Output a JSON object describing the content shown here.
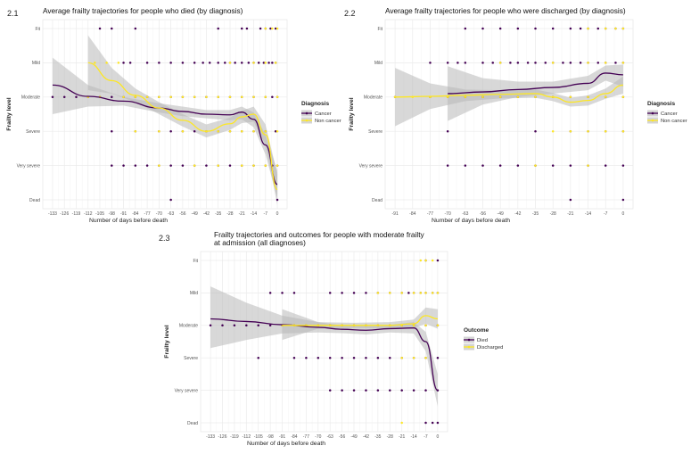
{
  "colors": {
    "purple": "#440154",
    "yellow": "#fde725",
    "band": "#b8b8b8",
    "grid": "#ebebeb"
  },
  "frailty_levels": [
    "Dead",
    "Very severe",
    "Severe",
    "Moderate",
    "Mild",
    "Fit"
  ],
  "chart_data": [
    {
      "panel": "2.1",
      "type": "scatter",
      "title": "Average frailty trajectories for people who died (by diagnosis)",
      "xlabel": "Number of days before death",
      "ylabel": "Frailty level",
      "xticks": [
        "-133",
        "-126",
        "-119",
        "-112",
        "-105",
        "-98",
        "-91",
        "-84",
        "-77",
        "-70",
        "-63",
        "-56",
        "-49",
        "-42",
        "-35",
        "-28",
        "-21",
        "-14",
        "-7",
        "0"
      ],
      "xlim": [
        -133,
        0
      ],
      "legend": {
        "title": "Diagnosis",
        "items": [
          "Cancer",
          "Non cancer"
        ],
        "position": "right"
      },
      "series": [
        {
          "name": "Cancer",
          "color": "purple",
          "points": {
            "Fit": [
              -105,
              -98,
              -84,
              -35,
              -21,
              -18,
              -10,
              -7,
              -4,
              -1
            ],
            "Mild": [
              -91,
              -87,
              -77,
              -70,
              -63,
              -56,
              -49,
              -44,
              -40,
              -35,
              -31,
              -28,
              -25,
              -21,
              -17,
              -14,
              -11,
              -8,
              -5,
              -3,
              -1
            ],
            "Moderate": [
              -133,
              -126,
              -119,
              -112,
              -105,
              -98,
              -91,
              -84,
              -77,
              -70,
              -63,
              -56,
              -49,
              -42,
              -35,
              -28,
              -21,
              -14,
              -7,
              -3,
              0
            ],
            "Severe": [
              -98,
              -84,
              -70,
              -63,
              -56,
              -49,
              -42,
              -35,
              -28,
              -21,
              -14,
              -7,
              -1
            ],
            "Very severe": [
              -98,
              -91,
              -84,
              -77,
              -70,
              -63,
              -56,
              -49,
              -42,
              -35,
              -28,
              -21,
              -14,
              -7,
              -3,
              0
            ],
            "Dead": [
              -63,
              0
            ]
          },
          "trend": [
            [
              -133,
              3.35
            ],
            [
              -112,
              3.02
            ],
            [
              -91,
              2.88
            ],
            [
              -70,
              2.68
            ],
            [
              -56,
              2.58
            ],
            [
              -42,
              2.5
            ],
            [
              -28,
              2.48
            ],
            [
              -21,
              2.56
            ],
            [
              -14,
              2.35
            ],
            [
              -7,
              1.6
            ],
            [
              0,
              0.45
            ]
          ],
          "band": [
            [
              -133,
              4.15,
              2.5
            ],
            [
              -112,
              3.35,
              2.72
            ],
            [
              -91,
              3.0,
              2.75
            ],
            [
              -70,
              2.82,
              2.55
            ],
            [
              -56,
              2.72,
              2.44
            ],
            [
              -42,
              2.62,
              2.38
            ],
            [
              -28,
              2.62,
              2.32
            ],
            [
              -21,
              2.72,
              2.35
            ],
            [
              -14,
              2.55,
              2.12
            ],
            [
              -7,
              1.9,
              1.32
            ],
            [
              0,
              0.85,
              0.05
            ]
          ]
        },
        {
          "name": "Non cancer",
          "color": "yellow",
          "points": {
            "Fit": [
              -7,
              -3,
              0
            ],
            "Mild": [
              -108,
              -101,
              -94,
              -28,
              -14,
              -7,
              -1
            ],
            "Moderate": [
              -112,
              -105,
              -91,
              -84,
              -77,
              -70,
              -63,
              -56,
              -49,
              -42,
              -35,
              -28,
              -21,
              -14,
              -7,
              0
            ],
            "Severe": [
              -84,
              -70,
              -56,
              -42,
              -35,
              -28,
              -21,
              -14,
              -7,
              0
            ],
            "Very severe": [
              -70,
              -49,
              -35,
              -21,
              -14,
              -7,
              0
            ],
            "Dead": []
          },
          "trend": [
            [
              -112,
              4.0
            ],
            [
              -98,
              3.48
            ],
            [
              -84,
              3.05
            ],
            [
              -70,
              2.68
            ],
            [
              -56,
              2.32
            ],
            [
              -42,
              2.0
            ],
            [
              -28,
              2.22
            ],
            [
              -21,
              2.42
            ],
            [
              -14,
              2.5
            ],
            [
              -7,
              1.9
            ],
            [
              0,
              0.3
            ]
          ],
          "band": [
            [
              -112,
              4.8,
              3.2
            ],
            [
              -98,
              3.85,
              3.1
            ],
            [
              -84,
              3.25,
              2.85
            ],
            [
              -70,
              2.85,
              2.5
            ],
            [
              -56,
              2.5,
              2.14
            ],
            [
              -42,
              2.2,
              1.82
            ],
            [
              -28,
              2.4,
              2.04
            ],
            [
              -21,
              2.6,
              2.24
            ],
            [
              -14,
              2.72,
              2.28
            ],
            [
              -7,
              2.2,
              1.6
            ],
            [
              0,
              0.75,
              -0.15
            ]
          ]
        }
      ]
    },
    {
      "panel": "2.2",
      "type": "scatter",
      "title": "Average frailty trajectories for people who were discharged (by diagnosis)",
      "xlabel": "Number of days before death",
      "ylabel": "Frailty level",
      "xticks": [
        "-91",
        "-84",
        "-77",
        "-70",
        "-63",
        "-56",
        "-49",
        "-42",
        "-35",
        "-28",
        "-21",
        "-14",
        "-7",
        "0"
      ],
      "xlim": [
        -91,
        0
      ],
      "legend": {
        "title": "Diagnosis",
        "items": [
          "Cancer",
          "Non cancer"
        ],
        "position": "right"
      },
      "series": [
        {
          "name": "Cancer",
          "color": "purple",
          "points": {
            "Fit": [
              -63,
              -56,
              -49,
              -42,
              -35,
              -28,
              -21,
              -17,
              -14,
              -10,
              -7,
              -3,
              0
            ],
            "Mild": [
              -77,
              -70,
              -66,
              -63,
              -56,
              -52,
              -49,
              -45,
              -42,
              -38,
              -35,
              -31,
              -28,
              -24,
              -21,
              -17,
              -14,
              -10,
              -7,
              -3,
              0
            ],
            "Moderate": [
              -91,
              -77,
              -70,
              -63,
              -56,
              -49,
              -42,
              -35,
              -28,
              -21,
              -14,
              -7,
              0
            ],
            "Severe": [
              -70,
              -35,
              -21,
              -14,
              -7,
              0
            ],
            "Very severe": [
              -70,
              -63,
              -56,
              -49,
              -42,
              -35,
              -28,
              -21,
              -14,
              -7,
              0
            ],
            "Dead": [
              -21,
              0
            ]
          },
          "trend": [
            [
              -70,
              3.1
            ],
            [
              -56,
              3.15
            ],
            [
              -42,
              3.22
            ],
            [
              -28,
              3.28
            ],
            [
              -14,
              3.4
            ],
            [
              -7,
              3.7
            ],
            [
              0,
              3.65
            ]
          ],
          "band": [
            [
              -70,
              3.9,
              2.3
            ],
            [
              -56,
              3.55,
              2.78
            ],
            [
              -42,
              3.45,
              3.0
            ],
            [
              -28,
              3.45,
              3.1
            ],
            [
              -14,
              3.62,
              3.2
            ],
            [
              -7,
              3.92,
              3.48
            ],
            [
              0,
              3.95,
              3.3
            ]
          ]
        },
        {
          "name": "Non cancer",
          "color": "yellow",
          "points": {
            "Fit": [
              -14,
              -7,
              -3,
              0
            ],
            "Mild": [
              -49,
              -28,
              -14,
              -7,
              0
            ],
            "Moderate": [
              -91,
              -84,
              -77,
              -70,
              -63,
              -56,
              -49,
              -42,
              -35,
              -28,
              -21,
              -14,
              -7,
              0
            ],
            "Severe": [
              -28,
              -21,
              -14,
              -7,
              0
            ],
            "Very severe": [
              -35,
              -14
            ],
            "Dead": []
          },
          "trend": [
            [
              -91,
              3.0
            ],
            [
              -77,
              3.02
            ],
            [
              -63,
              3.05
            ],
            [
              -49,
              3.08
            ],
            [
              -35,
              3.1
            ],
            [
              -28,
              3.0
            ],
            [
              -21,
              2.85
            ],
            [
              -14,
              2.9
            ],
            [
              -7,
              3.1
            ],
            [
              0,
              3.35
            ]
          ],
          "band": [
            [
              -91,
              3.85,
              2.15
            ],
            [
              -77,
              3.4,
              2.65
            ],
            [
              -63,
              3.22,
              2.88
            ],
            [
              -49,
              3.2,
              2.96
            ],
            [
              -35,
              3.22,
              2.98
            ],
            [
              -28,
              3.12,
              2.88
            ],
            [
              -21,
              2.98,
              2.72
            ],
            [
              -14,
              3.05,
              2.75
            ],
            [
              -7,
              3.25,
              2.95
            ],
            [
              0,
              3.6,
              3.1
            ]
          ]
        }
      ]
    },
    {
      "panel": "2.3",
      "type": "scatter",
      "title": "Frailty trajectories and outcomes for people with moderate frailty at admission (all diagnoses)",
      "title_lines": [
        "Frailty trajectories and outcomes for people with moderate frailty",
        "at admission (all diagnoses)"
      ],
      "xlabel": "Number of days before death",
      "ylabel": "Frailty level",
      "xticks": [
        "-133",
        "-126",
        "-119",
        "-112",
        "-105",
        "-98",
        "-91",
        "-84",
        "-77",
        "-70",
        "-63",
        "-56",
        "-49",
        "-42",
        "-35",
        "-28",
        "-21",
        "-14",
        "-7",
        "0"
      ],
      "xlim": [
        -133,
        0
      ],
      "legend": {
        "title": "Outcome",
        "items": [
          "Died",
          "Discharged"
        ],
        "position": "right"
      },
      "series": [
        {
          "name": "Died",
          "color": "purple",
          "points": {
            "Fit": [
              -7,
              0
            ],
            "Mild": [
              -98,
              -91,
              -84,
              -63,
              -56,
              -49,
              -42,
              -35,
              -28,
              -21,
              -17,
              -14,
              -10,
              -7,
              -3,
              0
            ],
            "Moderate": [
              -133,
              -126,
              -119,
              -112,
              -105,
              -98,
              -91,
              -84,
              -77,
              -70,
              -63,
              -56,
              -49,
              -42,
              -35,
              -28,
              -21,
              -14,
              -7,
              0
            ],
            "Severe": [
              -105,
              -84,
              -77,
              -70,
              -63,
              -56,
              -49,
              -42,
              -35,
              -28,
              -21,
              -14,
              -7,
              0
            ],
            "Very severe": [
              -63,
              -56,
              -49,
              -42,
              -35,
              -28,
              -21,
              -14,
              -7,
              0
            ],
            "Dead": [
              -7,
              -3,
              0
            ]
          },
          "trend": [
            [
              -133,
              3.2
            ],
            [
              -112,
              3.12
            ],
            [
              -91,
              3.02
            ],
            [
              -70,
              2.94
            ],
            [
              -56,
              2.88
            ],
            [
              -42,
              2.85
            ],
            [
              -28,
              2.9
            ],
            [
              -14,
              2.92
            ],
            [
              -7,
              2.5
            ],
            [
              0,
              1.0
            ]
          ],
          "band": [
            [
              -133,
              4.2,
              2.3
            ],
            [
              -112,
              3.7,
              2.55
            ],
            [
              -91,
              3.3,
              2.75
            ],
            [
              -70,
              3.1,
              2.78
            ],
            [
              -56,
              3.0,
              2.76
            ],
            [
              -42,
              2.98,
              2.72
            ],
            [
              -28,
              3.02,
              2.78
            ],
            [
              -14,
              3.1,
              2.75
            ],
            [
              -7,
              2.8,
              2.2
            ],
            [
              0,
              1.5,
              0.5
            ]
          ]
        },
        {
          "name": "Discharged",
          "color": "yellow",
          "points": {
            "Fit": [
              -10,
              -7,
              -3
            ],
            "Mild": [
              -35,
              -28,
              -21,
              -14,
              -10,
              -7,
              -3,
              0
            ],
            "Moderate": [
              -91,
              -84,
              -77,
              -70,
              -63,
              -56,
              -49,
              -42,
              -35,
              -28,
              -21,
              -14,
              -7,
              0
            ],
            "Severe": [
              -21,
              -14,
              -7
            ],
            "Very severe": [],
            "Dead": [
              -21
            ]
          },
          "trend": [
            [
              -91,
              3.0
            ],
            [
              -70,
              3.0
            ],
            [
              -49,
              3.0
            ],
            [
              -28,
              3.0
            ],
            [
              -14,
              3.05
            ],
            [
              -7,
              3.3
            ],
            [
              0,
              3.2
            ]
          ],
          "band": [
            [
              -91,
              3.5,
              2.55
            ],
            [
              -70,
              3.1,
              2.9
            ],
            [
              -49,
              3.08,
              2.92
            ],
            [
              -28,
              3.1,
              2.9
            ],
            [
              -14,
              3.18,
              2.92
            ],
            [
              -7,
              3.55,
              3.05
            ],
            [
              0,
              3.5,
              2.9
            ]
          ]
        }
      ]
    }
  ]
}
